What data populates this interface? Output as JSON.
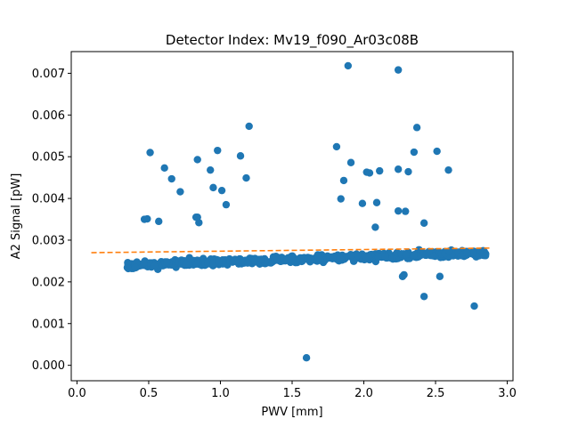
{
  "chart_data": {
    "type": "scatter",
    "title": "Detector Index: Mv19_f090_Ar03c08B",
    "xlabel": "PWV [mm]",
    "ylabel": "A2 Signal [pW]",
    "xlim": [
      -0.04,
      3.04
    ],
    "ylim": [
      -0.00037,
      0.00752
    ],
    "x_ticks": [
      0.0,
      0.5,
      1.0,
      1.5,
      2.0,
      2.5,
      3.0
    ],
    "x_tick_labels": [
      "0.0",
      "0.5",
      "1.0",
      "1.5",
      "2.0",
      "2.5",
      "3.0"
    ],
    "y_ticks": [
      0.0,
      0.001,
      0.002,
      0.003,
      0.004,
      0.005,
      0.006,
      0.007
    ],
    "y_tick_labels": [
      "0.000",
      "0.001",
      "0.002",
      "0.003",
      "0.004",
      "0.005",
      "0.006",
      "0.007"
    ],
    "grid": false,
    "colors": {
      "points": "#1f77b4",
      "fit_line": "#ff7f0e"
    },
    "series": [
      {
        "name": "A2 signal",
        "kind": "scatter",
        "x": [
          1.89,
          2.24,
          1.2,
          2.37,
          0.51,
          1.14,
          0.61,
          0.66,
          0.72,
          0.93,
          0.98,
          0.84,
          1.18,
          0.95,
          1.01,
          1.04,
          0.83,
          0.85,
          0.84,
          0.47,
          0.49,
          0.57,
          1.81,
          1.84,
          1.86,
          1.91,
          1.99,
          2.02,
          2.04,
          2.09,
          2.11,
          2.24,
          2.29,
          2.31,
          2.35,
          2.51,
          2.59,
          2.24,
          2.28,
          2.42,
          2.08,
          2.27,
          2.53,
          2.42,
          2.77,
          1.6
        ],
        "y": [
          0.00718,
          0.00708,
          0.00573,
          0.0057,
          0.0051,
          0.00502,
          0.00473,
          0.00447,
          0.00416,
          0.00468,
          0.00515,
          0.00493,
          0.00449,
          0.00426,
          0.00419,
          0.00385,
          0.00355,
          0.00342,
          0.00355,
          0.0035,
          0.00351,
          0.00345,
          0.00524,
          0.00399,
          0.00443,
          0.00486,
          0.00388,
          0.00463,
          0.00461,
          0.0039,
          0.00466,
          0.0037,
          0.00369,
          0.00464,
          0.00511,
          0.00513,
          0.00468,
          0.0047,
          0.00217,
          0.00341,
          0.00331,
          0.00213,
          0.00213,
          0.00165,
          0.00142,
          0.00018
        ]
      },
      {
        "name": "dense band",
        "kind": "scatter-band",
        "x_range": [
          0.35,
          2.85
        ],
        "y_center_start": 0.0024,
        "y_center_end": 0.0027,
        "y_spread": 0.00016,
        "count": 620
      },
      {
        "name": "linear fit",
        "kind": "line",
        "style": "dashed",
        "x": [
          0.1,
          2.88
        ],
        "y": [
          0.0027,
          0.00281
        ]
      }
    ]
  }
}
